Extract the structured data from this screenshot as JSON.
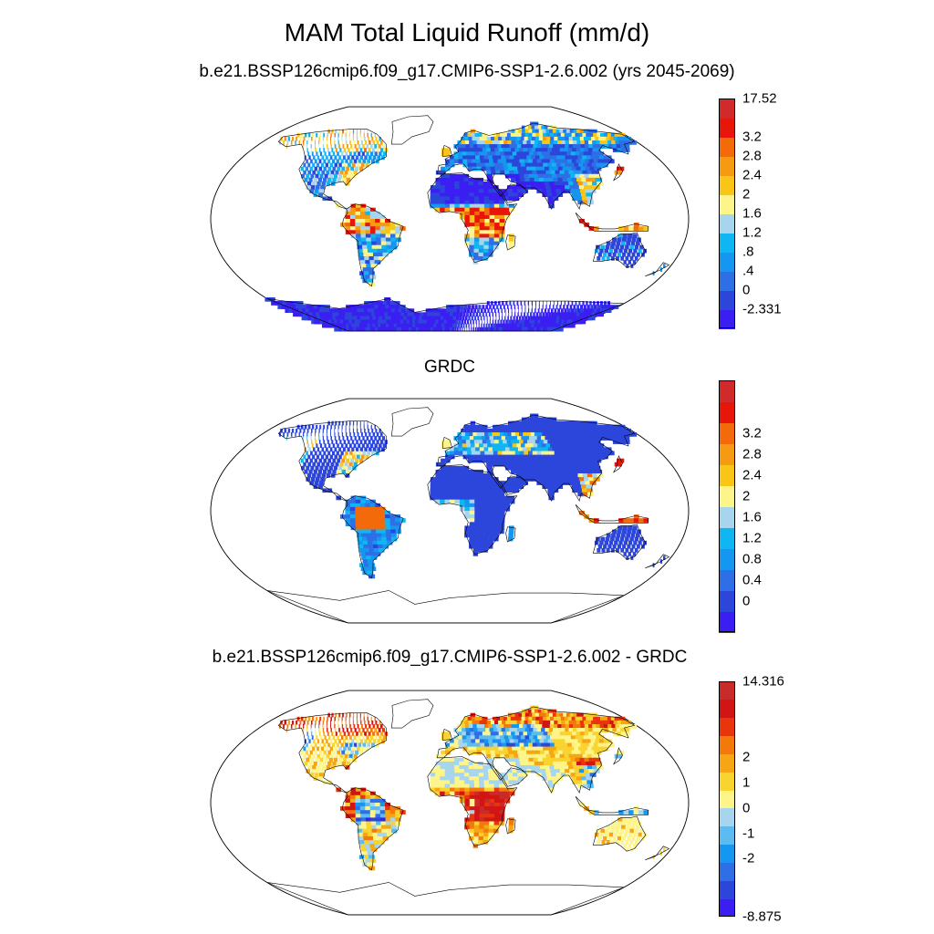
{
  "figure": {
    "title": "MAM Total Liquid Runoff (mm/d)"
  },
  "panels": [
    {
      "id": "model",
      "subtitle": "b.e21.BSSP126cmip6.f09_g17.CMIP6-SSP1-2.6.002 (yrs 2045-2069)",
      "colorbar": {
        "colors": [
          "#3b1ef2",
          "#2c46dc",
          "#2f6fe6",
          "#1596f0",
          "#10b6f2",
          "#a8d5ee",
          "#fdf58a",
          "#f9c618",
          "#f69a12",
          "#f26a0a",
          "#e8150b",
          "#d12a2a"
        ],
        "labels": [
          "-2.331",
          "0",
          ".4",
          ".8",
          "1.2",
          "1.6",
          "2",
          "2.4",
          "2.8",
          "3.2",
          "17.52"
        ]
      }
    },
    {
      "id": "obs",
      "subtitle": "GRDC",
      "colorbar": {
        "colors": [
          "#3b1ef2",
          "#2c46dc",
          "#2f6fe6",
          "#1596f0",
          "#10b6f2",
          "#a8d5ee",
          "#fdf58a",
          "#f9c618",
          "#f69a12",
          "#f26a0a",
          "#e8150b",
          "#d12a2a"
        ],
        "labels": [
          "0",
          "0.4",
          "0.8",
          "1.2",
          "1.6",
          "2",
          "2.4",
          "2.8",
          "3.2"
        ]
      }
    },
    {
      "id": "diff",
      "subtitle": "b.e21.BSSP126cmip6.f09_g17.CMIP6-SSP1-2.6.002 - GRDC",
      "colorbar": {
        "colors": [
          "#3b1ef2",
          "#2c46dc",
          "#2f6fe6",
          "#1596f0",
          "#5cbcf0",
          "#a8d5ee",
          "#fdf58a",
          "#f9d330",
          "#f6a612",
          "#f2790a",
          "#e8350b",
          "#d11515",
          "#c92a2a"
        ],
        "labels": [
          "-8.875",
          "-2",
          "-1",
          "0",
          "1",
          "2",
          "14.316"
        ]
      }
    }
  ]
}
